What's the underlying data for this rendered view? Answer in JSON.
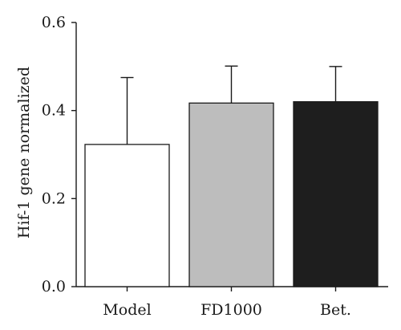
{
  "chart_data": {
    "type": "bar",
    "categories": [
      "Model",
      "FD1000",
      "Bet."
    ],
    "values": [
      0.323,
      0.417,
      0.42
    ],
    "errors": [
      0.152,
      0.084,
      0.08
    ],
    "bar_colors": [
      "#ffffff",
      "#bdbdbd",
      "#1e1e1e"
    ],
    "title": "",
    "xlabel": "",
    "ylabel": "Hif-1 gene normalized",
    "ylim": [
      0,
      0.6
    ],
    "yticks": [
      0.0,
      0.2,
      0.4,
      0.6
    ],
    "ytick_labels": [
      "0.0",
      "0.2",
      "0.4",
      "0.6"
    ],
    "grid": false,
    "error_bars": "upper only"
  }
}
